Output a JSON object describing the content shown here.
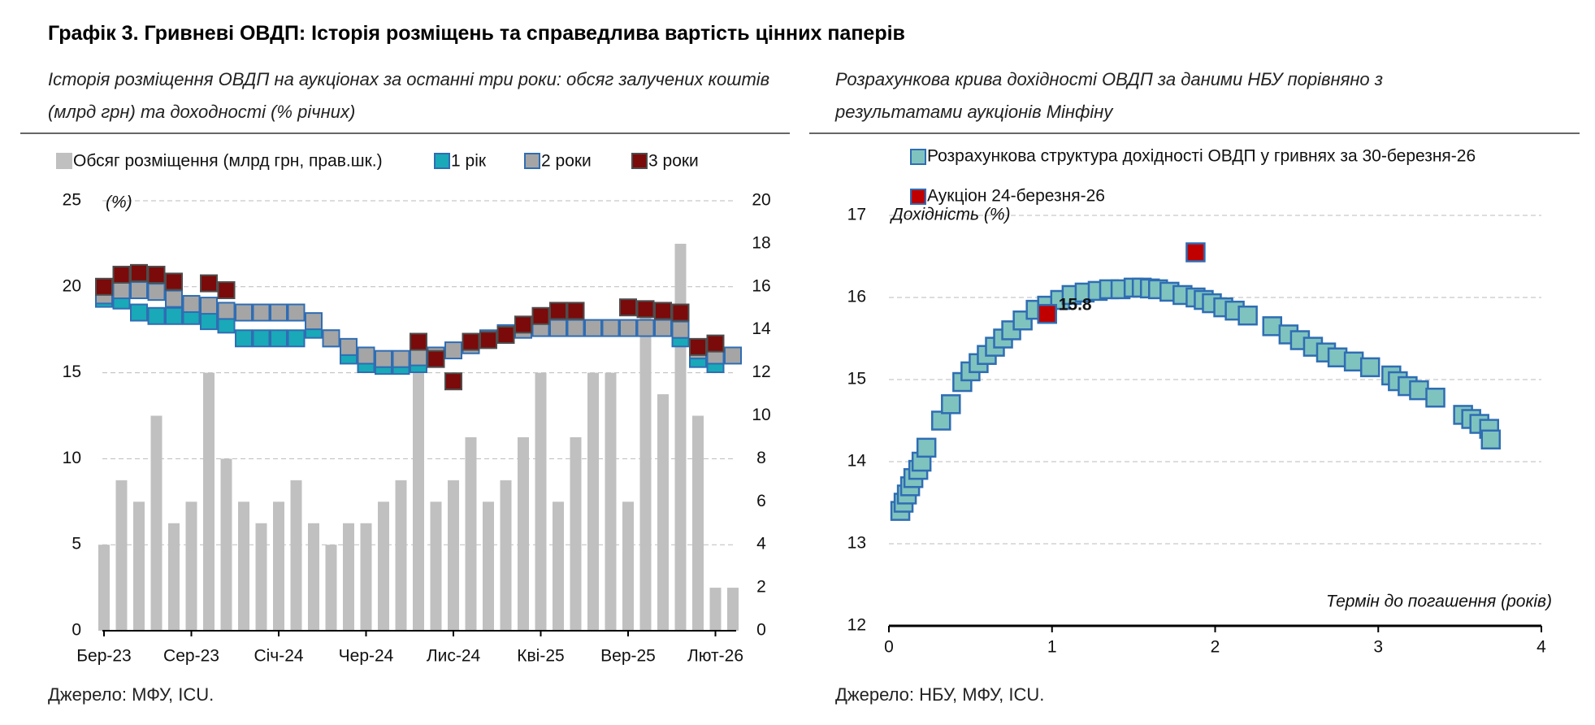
{
  "header": {
    "title": "Графік 3. Гривневі ОВДП: Історія розміщень та справедлива вартість цінних паперів"
  },
  "chart_data": [
    {
      "type": "combo",
      "subtitle": "Історія розміщення ОВДП на аукціонах за останні три роки: обсяг залучених коштів (млрд грн) та доходності (% річних)",
      "ylabel": "(%)",
      "source": "Джерело: МФУ, ICU.",
      "categories": [
        "Бер-23",
        null,
        null,
        null,
        null,
        "Сер-23",
        null,
        null,
        null,
        null,
        "Січ-24",
        null,
        null,
        null,
        null,
        "Чер-24",
        null,
        null,
        null,
        null,
        "Лис-24",
        null,
        null,
        null,
        null,
        "Кві-25",
        null,
        null,
        null,
        null,
        "Вер-25",
        null,
        null,
        null,
        null,
        "Лют-26",
        null
      ],
      "ylim": [
        0,
        25
      ],
      "yticks": [
        0,
        5,
        10,
        15,
        20,
        25
      ],
      "y2lim": [
        0,
        20
      ],
      "y2ticks": [
        0,
        2,
        4,
        6,
        8,
        10,
        12,
        14,
        16,
        18,
        20
      ],
      "grid": true,
      "series": [
        {
          "name": "Обсяг розміщення (млрд грн, прав.шк.)",
          "type": "bar",
          "axis": "y2",
          "color": "#c0c0c0",
          "values": [
            4,
            7,
            6,
            10,
            5,
            6,
            12,
            8,
            6,
            5,
            6,
            7,
            5,
            4,
            5,
            5,
            6,
            7,
            13,
            6,
            7,
            9,
            6,
            7,
            9,
            12,
            6,
            9,
            12,
            12,
            6,
            15,
            11,
            18,
            10,
            2,
            2
          ]
        },
        {
          "name": "1 рік",
          "type": "scatter",
          "color": "#19a9b8",
          "edgecolor": "#2f6db3",
          "values": [
            19.3,
            19.2,
            18.5,
            18.3,
            18.3,
            18.3,
            18.0,
            17.8,
            17.0,
            17.0,
            17.0,
            17.0,
            17.5,
            17.0,
            16.0,
            15.5,
            15.4,
            15.4,
            15.5,
            null,
            null,
            null,
            null,
            null,
            null,
            null,
            null,
            null,
            null,
            null,
            null,
            null,
            null,
            17.0,
            15.8,
            15.5,
            null
          ]
        },
        {
          "name": "2 роки",
          "type": "scatter",
          "color": "#a5a5a5",
          "edgecolor": "#2f6db3",
          "values": [
            19.5,
            19.8,
            19.8,
            19.7,
            19.3,
            19.0,
            18.9,
            18.6,
            18.5,
            18.5,
            18.5,
            18.5,
            18.0,
            17.0,
            16.5,
            16.0,
            15.8,
            15.8,
            15.9,
            16.0,
            16.3,
            16.6,
            17.0,
            17.3,
            17.5,
            17.6,
            17.6,
            17.6,
            17.6,
            17.6,
            17.6,
            17.6,
            17.6,
            17.5,
            16.3,
            16.0,
            16.0
          ]
        },
        {
          "name": "3 роки",
          "type": "scatter",
          "color": "#7b0a0a",
          "edgecolor": "#4d4d4d",
          "values": [
            20.0,
            20.7,
            20.8,
            20.7,
            20.3,
            null,
            20.2,
            19.8,
            null,
            null,
            null,
            null,
            null,
            null,
            null,
            null,
            null,
            null,
            16.8,
            15.8,
            14.5,
            16.8,
            16.9,
            17.2,
            17.8,
            18.3,
            18.6,
            18.6,
            null,
            null,
            18.8,
            18.7,
            18.6,
            18.5,
            16.5,
            16.7,
            null
          ]
        }
      ]
    },
    {
      "type": "scatter",
      "subtitle": "Розрахункова крива дохідності ОВДП за даними НБУ порівняно з результатами аукціонів Мінфіну",
      "ylabel": "Дохідність (%)",
      "xlabel": "Термін до погашення (років)",
      "source": "Джерело: НБУ, МФУ, ICU.",
      "xlim": [
        0,
        4
      ],
      "xticks": [
        0,
        1,
        2,
        3,
        4
      ],
      "ylim": [
        12,
        17
      ],
      "yticks": [
        12,
        13,
        14,
        15,
        16,
        17
      ],
      "grid": true,
      "series": [
        {
          "name": "Розрахункова структура дохідності ОВДП у гривнях за 30-березня-26",
          "color": "#7fc3bf",
          "edgecolor": "#2f6db3",
          "x": [
            0.07,
            0.09,
            0.11,
            0.13,
            0.15,
            0.18,
            0.2,
            0.23,
            0.32,
            0.38,
            0.45,
            0.5,
            0.55,
            0.6,
            0.65,
            0.7,
            0.75,
            0.82,
            0.9,
            0.97,
            1.05,
            1.12,
            1.2,
            1.28,
            1.35,
            1.42,
            1.5,
            1.55,
            1.6,
            1.65,
            1.72,
            1.8,
            1.88,
            1.93,
            1.98,
            2.05,
            2.12,
            2.2,
            2.35,
            2.45,
            2.52,
            2.6,
            2.68,
            2.75,
            2.85,
            2.95,
            3.08,
            3.12,
            3.18,
            3.25,
            3.35,
            3.52,
            3.57,
            3.62,
            3.68,
            3.69
          ],
          "y": [
            13.4,
            13.5,
            13.6,
            13.7,
            13.8,
            13.9,
            14.0,
            14.17,
            14.5,
            14.7,
            14.97,
            15.1,
            15.2,
            15.3,
            15.4,
            15.5,
            15.6,
            15.72,
            15.85,
            15.9,
            15.97,
            16.03,
            16.06,
            16.08,
            16.1,
            16.1,
            16.12,
            16.12,
            16.11,
            16.1,
            16.07,
            16.03,
            16.0,
            15.97,
            15.93,
            15.88,
            15.84,
            15.78,
            15.65,
            15.55,
            15.48,
            15.4,
            15.33,
            15.27,
            15.22,
            15.15,
            15.05,
            14.98,
            14.92,
            14.87,
            14.78,
            14.57,
            14.52,
            14.46,
            14.4,
            14.27
          ]
        },
        {
          "name": "Аукціон 24-березня-26",
          "color": "#c00000",
          "edgecolor": "#2f6db3",
          "x": [
            0.97,
            1.88
          ],
          "y": [
            15.8,
            16.55
          ]
        }
      ]
    }
  ]
}
